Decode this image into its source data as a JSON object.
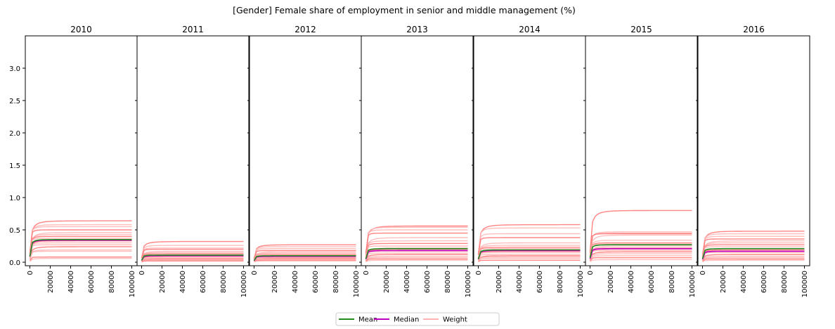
{
  "chart_data": {
    "type": "line",
    "title": "[Gender] Female share of employment in senior and middle management (%)",
    "facets": [
      "2010",
      "2011",
      "2012",
      "2013",
      "2014",
      "2015",
      "2016"
    ],
    "x_range": [
      0,
      100000
    ],
    "y_range": [
      0,
      3.2
    ],
    "x_ticks": [
      0,
      20000,
      40000,
      60000,
      80000,
      100000
    ],
    "y_ticks": [
      0.0,
      0.5,
      1.0,
      1.5,
      2.0,
      2.5,
      3.0
    ],
    "x_tick_labels": [
      "0",
      "20000",
      "40000",
      "60000",
      "80000",
      "100000"
    ],
    "y_tick_labels": [
      "0.0",
      "0.5",
      "1.0",
      "1.5",
      "2.0",
      "2.5",
      "3.0"
    ],
    "legend": {
      "placement": "bottom-center",
      "entries": [
        {
          "name": "Mean",
          "color": "#228b22"
        },
        {
          "name": "Median",
          "color": "#bf00bf"
        },
        {
          "name": "Weight",
          "color": "#ffb3b3"
        }
      ]
    },
    "panels": [
      {
        "year": "2010",
        "mean": 0.35,
        "median": 0.34,
        "weight_levels": [
          0.64,
          0.58,
          0.55,
          0.5,
          0.46,
          0.43,
          0.4,
          0.37,
          0.35,
          0.33,
          0.3,
          0.27,
          0.24,
          0.19,
          0.17,
          0.08,
          0.06
        ]
      },
      {
        "year": "2011",
        "mean": 0.11,
        "median": 0.1,
        "weight_levels": [
          0.32,
          0.26,
          0.22,
          0.2,
          0.17,
          0.15,
          0.13,
          0.11,
          0.1,
          0.09,
          0.07,
          0.06,
          0.05,
          0.04,
          0.03,
          0.02
        ]
      },
      {
        "year": "2012",
        "mean": 0.1,
        "median": 0.09,
        "weight_levels": [
          0.27,
          0.24,
          0.21,
          0.18,
          0.16,
          0.14,
          0.12,
          0.11,
          0.1,
          0.09,
          0.08,
          0.07,
          0.06,
          0.05,
          0.04,
          0.03,
          0.02
        ]
      },
      {
        "year": "2013",
        "mean": 0.21,
        "median": 0.18,
        "weight_levels": [
          0.56,
          0.54,
          0.5,
          0.45,
          0.38,
          0.33,
          0.29,
          0.25,
          0.22,
          0.2,
          0.17,
          0.14,
          0.12,
          0.09,
          0.07,
          0.05,
          0.03
        ]
      },
      {
        "year": "2014",
        "mean": 0.19,
        "median": 0.18,
        "weight_levels": [
          0.58,
          0.53,
          0.44,
          0.38,
          0.3,
          0.26,
          0.23,
          0.21,
          0.19,
          0.17,
          0.15,
          0.12,
          0.1,
          0.08,
          0.06,
          0.03
        ]
      },
      {
        "year": "2015",
        "mean": 0.27,
        "median": 0.21,
        "weight_levels": [
          0.8,
          0.47,
          0.45,
          0.44,
          0.42,
          0.34,
          0.3,
          0.28,
          0.25,
          0.22,
          0.2,
          0.18,
          0.16,
          0.13,
          0.1,
          0.07,
          0.04
        ]
      },
      {
        "year": "2016",
        "mean": 0.21,
        "median": 0.17,
        "weight_levels": [
          0.48,
          0.44,
          0.4,
          0.36,
          0.33,
          0.3,
          0.27,
          0.24,
          0.21,
          0.19,
          0.17,
          0.15,
          0.12,
          0.09,
          0.07,
          0.05,
          0.03
        ]
      }
    ]
  }
}
